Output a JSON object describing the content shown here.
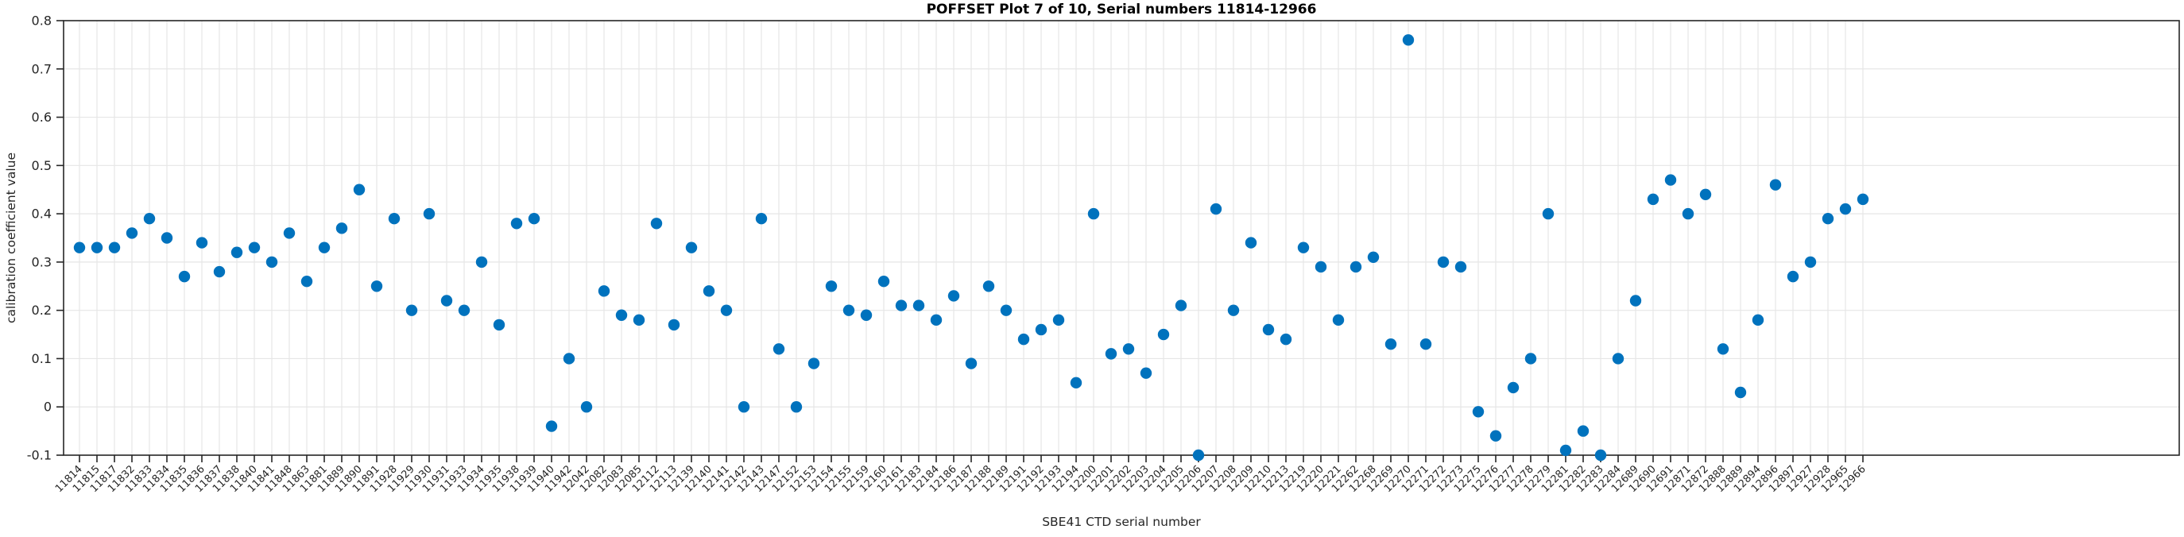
{
  "chart_data": {
    "type": "scatter",
    "title": "POFFSET Plot 7 of 10, Serial numbers 11814-12966",
    "xlabel": "SBE41 CTD serial number",
    "ylabel": "calibration coefficient value",
    "ylim": [
      -0.1,
      0.8
    ],
    "yticks": [
      0.8,
      0.7,
      0.6,
      0.5,
      0.4,
      0.3,
      0.2,
      0.1,
      0,
      -0.1
    ],
    "ytick_labels": [
      "0.8",
      "0.7",
      "0.6",
      "0.5",
      "0.4",
      "0.3",
      "0.2",
      "0.1",
      "0",
      "-0.1"
    ],
    "grid": true,
    "legend": null,
    "marker_color": "#0072BD",
    "axis_color": "#262626",
    "grid_color": "#e6e6e6",
    "categories": [
      "11814",
      "11815",
      "11817",
      "11832",
      "11833",
      "11834",
      "11835",
      "11836",
      "11837",
      "11838",
      "11840",
      "11841",
      "11848",
      "11863",
      "11881",
      "11889",
      "11890",
      "11891",
      "11928",
      "11929",
      "11930",
      "11931",
      "11933",
      "11934",
      "11935",
      "11938",
      "11939",
      "11940",
      "11942",
      "12042",
      "12082",
      "12083",
      "12085",
      "12112",
      "12113",
      "12139",
      "12140",
      "12141",
      "12142",
      "12143",
      "12147",
      "12152",
      "12153",
      "12154",
      "12155",
      "12159",
      "12160",
      "12161",
      "12183",
      "12184",
      "12186",
      "12187",
      "12188",
      "12189",
      "12191",
      "12192",
      "12193",
      "12194",
      "12200",
      "12201",
      "12202",
      "12203",
      "12204",
      "12205",
      "12206",
      "12207",
      "12208",
      "12209",
      "12210",
      "12213",
      "12219",
      "12220",
      "12221",
      "12262",
      "12268",
      "12269",
      "12270",
      "12271",
      "12272",
      "12273",
      "12275",
      "12276",
      "12277",
      "12278",
      "12279",
      "12281",
      "12282",
      "12283",
      "12284",
      "12689",
      "12690",
      "12691",
      "12871",
      "12872",
      "12888",
      "12889",
      "12894",
      "12896",
      "12897",
      "12927",
      "12928",
      "12965",
      "12966"
    ],
    "values": [
      0.33,
      0.33,
      0.33,
      0.36,
      0.39,
      0.35,
      0.27,
      0.34,
      0.28,
      0.32,
      0.33,
      0.3,
      0.36,
      0.26,
      0.33,
      0.37,
      0.45,
      0.25,
      0.39,
      0.2,
      0.4,
      0.22,
      0.2,
      0.3,
      0.17,
      0.38,
      0.39,
      -0.04,
      0.1,
      0.0,
      0.24,
      0.19,
      0.18,
      0.38,
      0.17,
      0.33,
      0.24,
      0.2,
      0.0,
      0.39,
      0.12,
      0.0,
      0.09,
      0.25,
      0.2,
      0.19,
      0.26,
      0.21,
      0.21,
      0.18,
      0.23,
      0.09,
      0.25,
      0.2,
      0.14,
      0.16,
      0.18,
      0.05,
      0.4,
      0.11,
      0.12,
      0.07,
      0.15,
      0.21,
      -0.1,
      0.41,
      0.2,
      0.34,
      0.16,
      0.14,
      0.33,
      0.29,
      0.18,
      0.29,
      0.31,
      0.13,
      0.76,
      0.13,
      0.3,
      0.29,
      -0.01,
      -0.06,
      0.04,
      0.1,
      0.4,
      -0.09,
      -0.05,
      -0.1,
      0.1,
      0.22,
      0.43,
      0.47,
      0.4,
      0.44,
      0.12,
      0.03,
      0.18,
      0.46,
      0.27,
      0.3,
      0.39,
      0.41,
      0.43
    ]
  }
}
